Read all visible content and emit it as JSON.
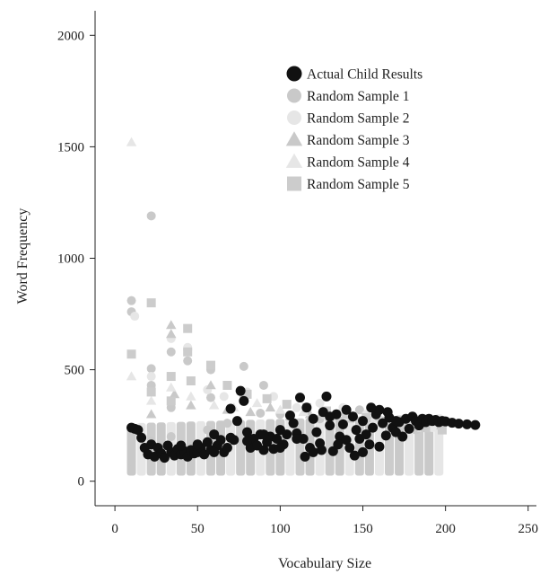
{
  "chart_data": {
    "type": "scatter",
    "xlabel": "Vocabulary Size",
    "ylabel": "Word Frequency",
    "xlim": [
      -12,
      255
    ],
    "ylim": [
      -110,
      2110
    ],
    "xticks": [
      0,
      50,
      100,
      150,
      200,
      250
    ],
    "yticks": [
      0,
      500,
      1000,
      1500,
      2000
    ],
    "legend_position": "top-right",
    "grid": false,
    "series": [
      {
        "name": "Actual Child Results",
        "marker": "circle",
        "color": "#111111",
        "x_min": 5,
        "x_max": 218,
        "points": [
          [
            10,
            240
          ],
          [
            12,
            235
          ],
          [
            14,
            230
          ],
          [
            16,
            195
          ],
          [
            18,
            150
          ],
          [
            20,
            120
          ],
          [
            22,
            165
          ],
          [
            24,
            110
          ],
          [
            26,
            150
          ],
          [
            28,
            125
          ],
          [
            30,
            105
          ],
          [
            32,
            160
          ],
          [
            34,
            130
          ],
          [
            36,
            115
          ],
          [
            38,
            145
          ],
          [
            40,
            120
          ],
          [
            42,
            135
          ],
          [
            44,
            110
          ],
          [
            46,
            140
          ],
          [
            48,
            125
          ],
          [
            50,
            130
          ],
          [
            52,
            150
          ],
          [
            54,
            120
          ],
          [
            56,
            175
          ],
          [
            58,
            140
          ],
          [
            60,
            210
          ],
          [
            62,
            160
          ],
          [
            64,
            185
          ],
          [
            66,
            130
          ],
          [
            68,
            150
          ],
          [
            70,
            325
          ],
          [
            72,
            185
          ],
          [
            74,
            270
          ],
          [
            76,
            405
          ],
          [
            78,
            360
          ],
          [
            80,
            220
          ],
          [
            82,
            150
          ],
          [
            84,
            190
          ],
          [
            86,
            160
          ],
          [
            88,
            210
          ],
          [
            90,
            140
          ],
          [
            92,
            175
          ],
          [
            94,
            200
          ],
          [
            96,
            145
          ],
          [
            98,
            190
          ],
          [
            100,
            230
          ],
          [
            102,
            165
          ],
          [
            104,
            210
          ],
          [
            106,
            295
          ],
          [
            108,
            260
          ],
          [
            110,
            215
          ],
          [
            112,
            375
          ],
          [
            114,
            190
          ],
          [
            116,
            330
          ],
          [
            118,
            150
          ],
          [
            120,
            280
          ],
          [
            122,
            220
          ],
          [
            124,
            170
          ],
          [
            126,
            310
          ],
          [
            128,
            380
          ],
          [
            130,
            250
          ],
          [
            132,
            135
          ],
          [
            134,
            300
          ],
          [
            136,
            200
          ],
          [
            138,
            255
          ],
          [
            140,
            185
          ],
          [
            142,
            150
          ],
          [
            144,
            290
          ],
          [
            146,
            230
          ],
          [
            148,
            190
          ],
          [
            150,
            270
          ],
          [
            152,
            210
          ],
          [
            154,
            165
          ],
          [
            156,
            240
          ],
          [
            158,
            300
          ],
          [
            160,
            155
          ],
          [
            162,
            260
          ],
          [
            164,
            205
          ],
          [
            166,
            285
          ],
          [
            168,
            240
          ],
          [
            170,
            220
          ],
          [
            172,
            265
          ],
          [
            174,
            200
          ],
          [
            176,
            280
          ],
          [
            178,
            235
          ],
          [
            180,
            290
          ],
          [
            182,
            270
          ],
          [
            184,
            250
          ],
          [
            186,
            280
          ],
          [
            188,
            265
          ],
          [
            190,
            280
          ],
          [
            192,
            270
          ],
          [
            194,
            275
          ],
          [
            196,
            265
          ],
          [
            198,
            270
          ],
          [
            200,
            268
          ],
          [
            204,
            262
          ],
          [
            208,
            258
          ],
          [
            213,
            255
          ],
          [
            218,
            252
          ],
          [
            40,
            160
          ],
          [
            50,
            165
          ],
          [
            60,
            130
          ],
          [
            70,
            195
          ],
          [
            80,
            180
          ],
          [
            90,
            210
          ],
          [
            100,
            150
          ],
          [
            110,
            190
          ],
          [
            120,
            130
          ],
          [
            130,
            290
          ],
          [
            140,
            320
          ],
          [
            150,
            130
          ],
          [
            160,
            320
          ],
          [
            170,
            270
          ],
          [
            115,
            110
          ],
          [
            125,
            140
          ],
          [
            135,
            165
          ],
          [
            145,
            115
          ],
          [
            155,
            330
          ],
          [
            165,
            310
          ]
        ]
      },
      {
        "name": "Random Sample 1",
        "marker": "circle",
        "color": "#c9c9c9",
        "points": [
          [
            10,
            760
          ],
          [
            10,
            810
          ],
          [
            22,
            1190
          ],
          [
            22,
            505
          ],
          [
            22,
            430
          ],
          [
            34,
            580
          ],
          [
            34,
            330
          ],
          [
            44,
            590
          ],
          [
            44,
            540
          ],
          [
            58,
            500
          ],
          [
            58,
            375
          ],
          [
            78,
            515
          ],
          [
            78,
            380
          ],
          [
            90,
            430
          ],
          [
            88,
            305
          ],
          [
            10,
            170
          ],
          [
            10,
            90
          ],
          [
            22,
            180
          ],
          [
            34,
            200
          ],
          [
            46,
            140
          ],
          [
            56,
            230
          ],
          [
            68,
            260
          ],
          [
            100,
            300
          ],
          [
            112,
            220
          ],
          [
            124,
            280
          ],
          [
            136,
            270
          ],
          [
            148,
            320
          ],
          [
            158,
            290
          ],
          [
            170,
            260
          ],
          [
            182,
            230
          ],
          [
            194,
            250
          ]
        ]
      },
      {
        "name": "Random Sample 2",
        "marker": "circle",
        "color": "#e6e6e6",
        "points": [
          [
            12,
            740
          ],
          [
            22,
            470
          ],
          [
            34,
            640
          ],
          [
            44,
            600
          ],
          [
            56,
            410
          ],
          [
            66,
            380
          ],
          [
            80,
            400
          ],
          [
            96,
            380
          ],
          [
            110,
            330
          ],
          [
            124,
            350
          ],
          [
            138,
            330
          ],
          [
            152,
            300
          ],
          [
            166,
            280
          ],
          [
            180,
            260
          ],
          [
            192,
            240
          ]
        ]
      },
      {
        "name": "Random Sample 3",
        "marker": "triangle",
        "color": "#c9c9c9",
        "points": [
          [
            34,
            700
          ],
          [
            34,
            660
          ],
          [
            36,
            390
          ],
          [
            22,
            300
          ],
          [
            46,
            340
          ],
          [
            58,
            430
          ],
          [
            68,
            320
          ],
          [
            82,
            310
          ],
          [
            94,
            330
          ],
          [
            106,
            290
          ],
          [
            118,
            300
          ],
          [
            130,
            290
          ],
          [
            142,
            280
          ],
          [
            154,
            260
          ],
          [
            168,
            250
          ],
          [
            182,
            240
          ]
        ]
      },
      {
        "name": "Random Sample 4",
        "marker": "triangle",
        "color": "#e6e6e6",
        "points": [
          [
            10,
            1520
          ],
          [
            10,
            470
          ],
          [
            22,
            360
          ],
          [
            34,
            420
          ],
          [
            46,
            380
          ],
          [
            60,
            340
          ],
          [
            72,
            330
          ],
          [
            86,
            350
          ],
          [
            100,
            320
          ],
          [
            114,
            310
          ],
          [
            128,
            300
          ],
          [
            142,
            290
          ],
          [
            156,
            270
          ],
          [
            170,
            260
          ],
          [
            186,
            240
          ]
        ]
      },
      {
        "name": "Random Sample 5",
        "marker": "square",
        "color": "#cccccc",
        "points": [
          [
            10,
            570
          ],
          [
            22,
            800
          ],
          [
            44,
            685
          ],
          [
            44,
            580
          ],
          [
            58,
            520
          ],
          [
            22,
            400
          ],
          [
            34,
            470
          ],
          [
            34,
            360
          ],
          [
            46,
            450
          ],
          [
            68,
            430
          ],
          [
            80,
            390
          ],
          [
            92,
            370
          ],
          [
            104,
            345
          ],
          [
            116,
            330
          ],
          [
            128,
            315
          ],
          [
            140,
            300
          ],
          [
            152,
            285
          ],
          [
            164,
            270
          ],
          [
            176,
            255
          ],
          [
            188,
            240
          ],
          [
            198,
            230
          ]
        ]
      }
    ],
    "bands": {
      "xs": [
        10,
        16,
        22,
        28,
        34,
        40,
        46,
        52,
        58,
        64,
        70,
        76,
        82,
        88,
        94,
        100,
        106,
        112,
        118,
        124,
        130,
        136,
        142,
        148,
        154,
        160,
        166,
        172,
        178,
        184,
        190,
        196
      ],
      "y_low": 25,
      "y_high_start": 260,
      "y_high_end": 300,
      "colors": [
        "#c9c9c9",
        "#e6e6e6",
        "#cccccc"
      ]
    }
  }
}
